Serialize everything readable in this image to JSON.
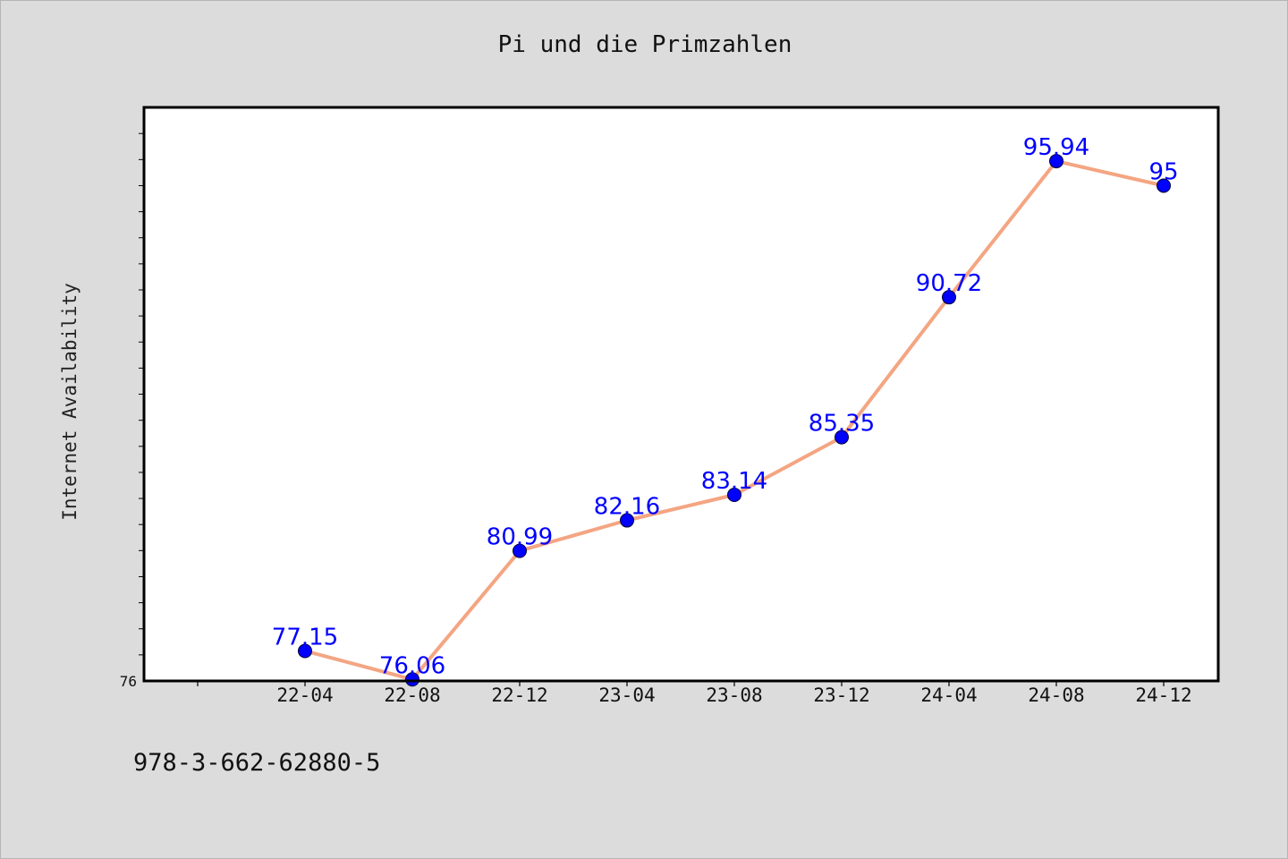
{
  "chart_data": {
    "type": "line",
    "title": "Pi und die Primzahlen",
    "xlabel": "",
    "ylabel": "Internet Availability",
    "categories": [
      "22-04",
      "22-08",
      "22-12",
      "23-04",
      "23-08",
      "23-12",
      "24-04",
      "24-08",
      "24-12"
    ],
    "series": [
      {
        "values": [
          77.15,
          76.06,
          80.99,
          82.16,
          83.14,
          85.35,
          90.72,
          95.94,
          95
        ]
      }
    ],
    "data_labels": [
      "77.15",
      "76.06",
      "80.99",
      "82.16",
      "83.14",
      "85.35",
      "90.72",
      "95.94",
      "95"
    ],
    "y_tick_labels": [
      "76"
    ],
    "ylim": [
      76,
      98
    ],
    "grid": false,
    "colors": {
      "line": "#f4a582",
      "marker": "#0000ff",
      "label": "#0000ff",
      "plot_background": "#ffffff",
      "figure_background": "#dcdcdc"
    }
  },
  "footer": "978-3-662-62880-5"
}
